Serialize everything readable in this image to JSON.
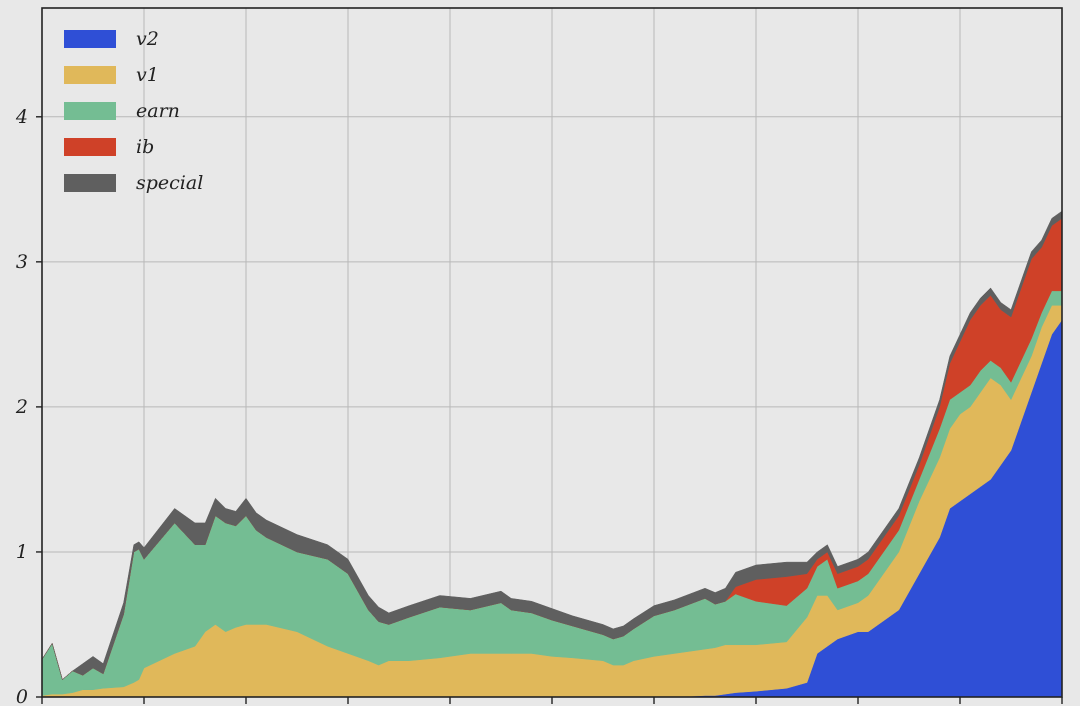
{
  "chart_data": {
    "type": "area",
    "stacked": true,
    "ylim": [
      0,
      4.75
    ],
    "yticks": [
      0,
      1,
      2,
      3,
      4
    ],
    "ytick_labels": [
      "0",
      "1",
      "2",
      "3",
      "4"
    ],
    "xlim": [
      0,
      100
    ],
    "grid": true,
    "legend": {
      "placement": "top-left",
      "order": [
        "v2",
        "v1",
        "earn",
        "ib",
        "special"
      ]
    },
    "x": [
      0,
      1,
      2,
      3,
      4,
      5,
      6,
      8,
      9,
      9.5,
      10,
      13,
      15,
      16,
      17,
      18,
      19,
      20,
      21,
      22,
      25,
      28,
      30,
      32,
      33,
      34,
      36,
      39,
      42,
      45,
      46,
      48,
      50,
      52,
      55,
      56,
      57,
      58,
      60,
      62,
      65,
      66,
      67,
      68,
      70,
      73,
      75,
      76,
      77,
      78,
      80,
      81,
      82,
      84,
      86,
      88,
      89,
      90,
      91,
      92,
      93,
      94,
      95,
      96,
      97,
      98,
      99,
      100
    ],
    "series": [
      {
        "name": "v2",
        "color": "#2f4fd6",
        "values": [
          0,
          0,
          0,
          0,
          0,
          0,
          0,
          0,
          0,
          0,
          0,
          0,
          0,
          0,
          0,
          0,
          0,
          0,
          0,
          0,
          0,
          0,
          0,
          0,
          0,
          0,
          0,
          0,
          0,
          0,
          0,
          0,
          0,
          0,
          0,
          0,
          0,
          0,
          0,
          0,
          0.01,
          0.01,
          0.02,
          0.03,
          0.04,
          0.06,
          0.1,
          0.3,
          0.35,
          0.4,
          0.45,
          0.45,
          0.5,
          0.6,
          0.85,
          1.1,
          1.3,
          1.35,
          1.4,
          1.45,
          1.5,
          1.6,
          1.7,
          1.9,
          2.1,
          2.3,
          2.5,
          2.6
        ]
      },
      {
        "name": "v1",
        "color": "#e0b85a",
        "values": [
          0.01,
          0.02,
          0.02,
          0.03,
          0.05,
          0.05,
          0.06,
          0.07,
          0.1,
          0.12,
          0.2,
          0.3,
          0.35,
          0.45,
          0.5,
          0.45,
          0.48,
          0.5,
          0.5,
          0.5,
          0.45,
          0.35,
          0.3,
          0.25,
          0.22,
          0.25,
          0.25,
          0.27,
          0.3,
          0.3,
          0.3,
          0.3,
          0.28,
          0.27,
          0.25,
          0.22,
          0.22,
          0.25,
          0.28,
          0.3,
          0.32,
          0.33,
          0.34,
          0.33,
          0.32,
          0.32,
          0.45,
          0.4,
          0.35,
          0.2,
          0.2,
          0.25,
          0.3,
          0.4,
          0.5,
          0.55,
          0.55,
          0.6,
          0.6,
          0.65,
          0.7,
          0.55,
          0.35,
          0.3,
          0.25,
          0.25,
          0.2,
          0.1
        ]
      },
      {
        "name": "earn",
        "color": "#74bd93",
        "values": [
          0.25,
          0.35,
          0.1,
          0.15,
          0.1,
          0.15,
          0.1,
          0.5,
          0.9,
          0.9,
          0.75,
          0.9,
          0.7,
          0.6,
          0.75,
          0.75,
          0.7,
          0.75,
          0.65,
          0.6,
          0.55,
          0.6,
          0.55,
          0.35,
          0.3,
          0.25,
          0.3,
          0.35,
          0.3,
          0.35,
          0.3,
          0.28,
          0.25,
          0.22,
          0.18,
          0.18,
          0.2,
          0.22,
          0.28,
          0.3,
          0.35,
          0.3,
          0.3,
          0.35,
          0.3,
          0.25,
          0.2,
          0.2,
          0.25,
          0.15,
          0.15,
          0.15,
          0.15,
          0.15,
          0.15,
          0.2,
          0.2,
          0.15,
          0.15,
          0.15,
          0.12,
          0.12,
          0.12,
          0.12,
          0.12,
          0.1,
          0.1,
          0.1
        ]
      },
      {
        "name": "ib",
        "color": "#cf4128",
        "values": [
          0,
          0,
          0,
          0,
          0,
          0,
          0,
          0,
          0,
          0,
          0,
          0,
          0,
          0,
          0,
          0,
          0,
          0,
          0,
          0,
          0,
          0,
          0,
          0,
          0,
          0,
          0,
          0,
          0,
          0,
          0,
          0,
          0,
          0,
          0,
          0,
          0,
          0,
          0,
          0,
          0,
          0,
          0,
          0.05,
          0.15,
          0.2,
          0.1,
          0.05,
          0.05,
          0.1,
          0.1,
          0.1,
          0.1,
          0.1,
          0.1,
          0.15,
          0.25,
          0.35,
          0.45,
          0.45,
          0.45,
          0.4,
          0.45,
          0.5,
          0.55,
          0.45,
          0.45,
          0.5
        ]
      },
      {
        "name": "special",
        "color": "#5f5f5f",
        "values": [
          0,
          0,
          0,
          0,
          0.08,
          0.08,
          0.07,
          0.08,
          0.05,
          0.05,
          0.08,
          0.1,
          0.15,
          0.15,
          0.12,
          0.1,
          0.1,
          0.12,
          0.12,
          0.12,
          0.12,
          0.1,
          0.1,
          0.1,
          0.1,
          0.08,
          0.08,
          0.08,
          0.08,
          0.08,
          0.08,
          0.08,
          0.08,
          0.07,
          0.07,
          0.07,
          0.07,
          0.07,
          0.07,
          0.07,
          0.07,
          0.08,
          0.09,
          0.1,
          0.1,
          0.1,
          0.08,
          0.05,
          0.05,
          0.05,
          0.05,
          0.05,
          0.05,
          0.05,
          0.05,
          0.05,
          0.05,
          0.05,
          0.05,
          0.05,
          0.05,
          0.05,
          0.05,
          0.05,
          0.05,
          0.05,
          0.05,
          0.05
        ]
      }
    ]
  }
}
